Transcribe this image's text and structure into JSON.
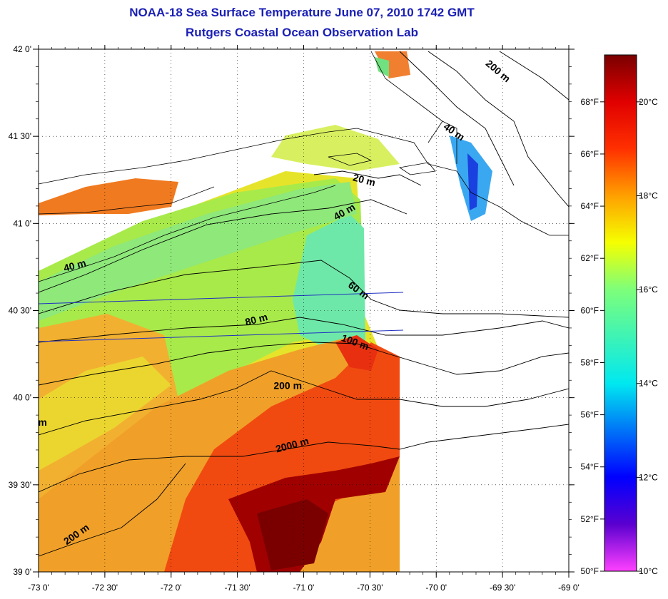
{
  "title": "NOAA-18 Sea Surface Temperature June 07, 2010 1742 GMT",
  "subtitle": "Rutgers Coastal Ocean Observation Lab",
  "map": {
    "lon_ticks": [
      "-73 0'",
      "-72 30'",
      "-72 0'",
      "-71 30'",
      "-71 0'",
      "-70 30'",
      "-70 0'",
      "-69 30'",
      "-69 0'"
    ],
    "lat_ticks": [
      "42 0'",
      "41 30'",
      "41 0'",
      "40 30'",
      "40 0'",
      "39 30'",
      "39 0'"
    ],
    "lon_range": [
      -73,
      -69
    ],
    "lat_range": [
      39,
      42
    ],
    "grid": "dotted"
  },
  "contour_labels": [
    {
      "text": "200 m",
      "lon": -69.55,
      "lat": 41.86,
      "rot": 40
    },
    {
      "text": "40 m",
      "lon": -69.88,
      "lat": 41.51,
      "rot": 35
    },
    {
      "text": "20 m",
      "lon": -70.55,
      "lat": 41.23,
      "rot": 15
    },
    {
      "text": "40 m",
      "lon": -70.68,
      "lat": 41.05,
      "rot": -30
    },
    {
      "text": "40 m",
      "lon": -72.72,
      "lat": 40.74,
      "rot": -15
    },
    {
      "text": "60 m",
      "lon": -70.6,
      "lat": 40.6,
      "rot": 35
    },
    {
      "text": "80 m",
      "lon": -71.35,
      "lat": 40.43,
      "rot": -15
    },
    {
      "text": "100 m",
      "lon": -70.62,
      "lat": 40.3,
      "rot": 20
    },
    {
      "text": "200 m",
      "lon": -71.12,
      "lat": 40.05,
      "rot": 0
    },
    {
      "text": "2000 m",
      "lon": -71.08,
      "lat": 39.71,
      "rot": -15
    },
    {
      "text": "200 m",
      "lon": -72.7,
      "lat": 39.2,
      "rot": -35
    },
    {
      "text": "m",
      "lon": -72.97,
      "lat": 39.84,
      "rot": 0
    }
  ],
  "colorbar": {
    "fahrenheit": [
      "68°F",
      "66°F",
      "64°F",
      "62°F",
      "60°F",
      "58°F",
      "56°F",
      "54°F",
      "52°F",
      "50°F"
    ],
    "fahrenheit_values": [
      68,
      66,
      64,
      62,
      60,
      58,
      56,
      54,
      52,
      50
    ],
    "celsius": [
      "20°C",
      "18°C",
      "16°C",
      "14°C",
      "12°C",
      "10°C"
    ],
    "celsius_values": [
      20,
      18,
      16,
      14,
      12,
      10
    ],
    "range_c": [
      10,
      21
    ],
    "stops": [
      {
        "c": 10,
        "color": "#ff40ff"
      },
      {
        "c": 11,
        "color": "#5a00d0"
      },
      {
        "c": 12,
        "color": "#0000ff"
      },
      {
        "c": 14,
        "color": "#00e8f0"
      },
      {
        "c": 16,
        "color": "#7dff7a"
      },
      {
        "c": 17,
        "color": "#f5ff00"
      },
      {
        "c": 18,
        "color": "#ffa000"
      },
      {
        "c": 19,
        "color": "#ff3000"
      },
      {
        "c": 20,
        "color": "#e00000"
      },
      {
        "c": 21,
        "color": "#7a0000"
      }
    ]
  },
  "colors": {
    "land": "#ffffff",
    "no_data": "#ffffff",
    "title": "#1a1fb4",
    "contour": "#000000",
    "track": "#2030c0"
  }
}
